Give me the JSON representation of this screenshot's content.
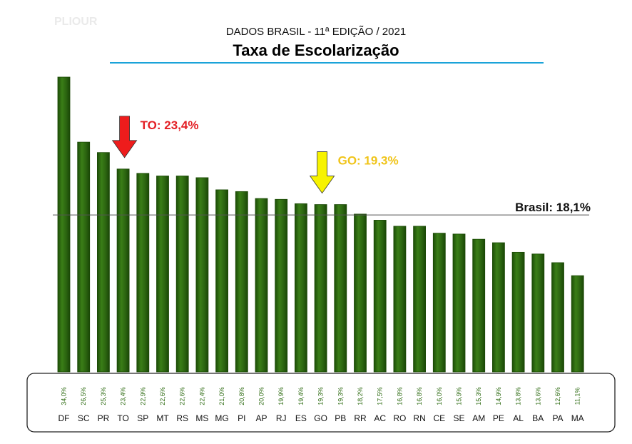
{
  "header": {
    "subtitle": "DADOS BRASIL - 11ª EDIÇÃO / 2021",
    "title": "Taxa de Escolarização",
    "faint_logo": "PLIOUR"
  },
  "colors": {
    "bar": "#2d6a0f",
    "bar_edge": "#1b4a05",
    "value_text": "#2e6b12",
    "to_arrow": "#ee1c1c",
    "to_text": "#e31e24",
    "go_arrow": "#f7f300",
    "go_text": "#f0c419",
    "rule": "#1aa3d9"
  },
  "annotations": {
    "to_label": "TO: 23,4%",
    "go_label": "GO: 19,3%",
    "brasil_label": "Brasil: 18,1%"
  },
  "chart_data": {
    "type": "bar",
    "title": "Taxa de Escolarização",
    "categories": [
      "DF",
      "SC",
      "PR",
      "TO",
      "SP",
      "MT",
      "RS",
      "MS",
      "MG",
      "PI",
      "AP",
      "RJ",
      "ES",
      "GO",
      "PB",
      "RR",
      "AC",
      "RO",
      "RN",
      "CE",
      "SE",
      "AM",
      "PE",
      "AL",
      "BA",
      "PA",
      "MA"
    ],
    "values": [
      34.0,
      26.5,
      25.3,
      23.4,
      22.9,
      22.6,
      22.6,
      22.4,
      21.0,
      20.8,
      20.0,
      19.9,
      19.4,
      19.3,
      19.3,
      18.2,
      17.5,
      16.8,
      16.8,
      16.0,
      15.9,
      15.3,
      14.9,
      13.8,
      13.6,
      12.6,
      11.1
    ],
    "value_labels": [
      "34,0%",
      "26,5%",
      "25,3%",
      "23,4%",
      "22,9%",
      "22,6%",
      "22,6%",
      "22,4%",
      "21,0%",
      "20,8%",
      "20,0%",
      "19,9%",
      "19,4%",
      "19,3%",
      "19,3%",
      "18,2%",
      "17,5%",
      "16,8%",
      "16,8%",
      "16,0%",
      "15,9%",
      "15,3%",
      "14,9%",
      "13,8%",
      "13,6%",
      "12,6%",
      "11,1%"
    ],
    "reference_line": {
      "value": 18.1,
      "label": "Brasil: 18,1%"
    },
    "highlights": [
      {
        "category": "TO",
        "value": 23.4,
        "label": "TO: 23,4%",
        "color": "red"
      },
      {
        "category": "GO",
        "value": 19.3,
        "label": "GO: 19,3%",
        "color": "yellow"
      }
    ],
    "ylim": [
      0,
      34
    ],
    "grid": false,
    "xlabel": "",
    "ylabel": ""
  }
}
